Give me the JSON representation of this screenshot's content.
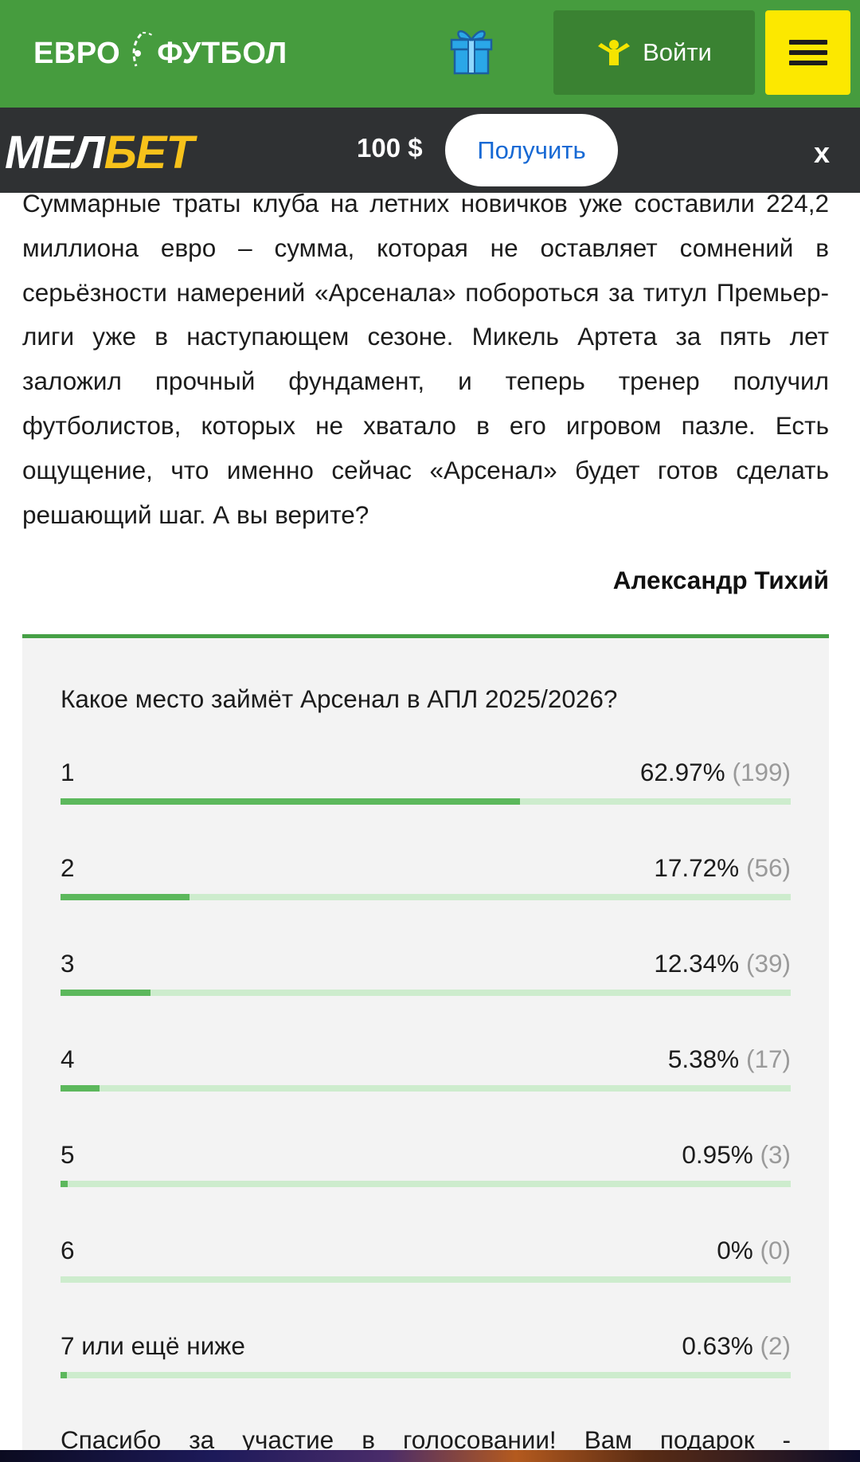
{
  "header": {
    "logo_left": "ЕВРО",
    "logo_right": "ФУТБОЛ",
    "login_label": "Войти"
  },
  "promo": {
    "brand_part1": "МЕЛ",
    "brand_part2": "БЕТ",
    "amount": "100 $",
    "button_label": "Получить",
    "close_label": "x"
  },
  "article": {
    "text": "Суммарные траты клуба на летних новичков уже составили 224,2 миллиона евро – сумма, которая не оставляет сомнений в серьёзности намерений «Арсенала» побороться за титул Премьер-лиги уже в наступающем сезоне. Микель Артета за пять лет заложил прочный фундамент, и теперь тренер получил футболистов, которых не хватало в его игровом пазле. Есть ощущение, что именно сейчас «Арсенал» будет готов сделать решающий шаг. А вы верите?",
    "author": "Александр Тихий"
  },
  "poll": {
    "question": "Какое место займёт Арсенал в АПЛ 2025/2026?",
    "options": [
      {
        "label": "1",
        "percent": "62.97%",
        "count": "(199)",
        "fraction": 0.6297
      },
      {
        "label": "2",
        "percent": "17.72%",
        "count": "(56)",
        "fraction": 0.1772
      },
      {
        "label": "3",
        "percent": "12.34%",
        "count": "(39)",
        "fraction": 0.1234
      },
      {
        "label": "4",
        "percent": "5.38%",
        "count": "(17)",
        "fraction": 0.0538
      },
      {
        "label": "5",
        "percent": "0.95%",
        "count": "(3)",
        "fraction": 0.0095
      },
      {
        "label": "6",
        "percent": "0%",
        "count": "(0)",
        "fraction": 0
      },
      {
        "label": "7 или ещё ниже",
        "percent": "0.63%",
        "count": "(2)",
        "fraction": 0.0063
      }
    ],
    "thanks": "Спасибо за участие в голосовании! Вам подарок -"
  },
  "colors": {
    "header_green": "#469c3e",
    "login_green": "#3a8232",
    "menu_yellow": "#fce800",
    "promo_dark": "#2f3133",
    "brand_yellow": "#f7c21b",
    "bar_fill": "#5cb85c",
    "bar_track": "#cdeccd"
  }
}
